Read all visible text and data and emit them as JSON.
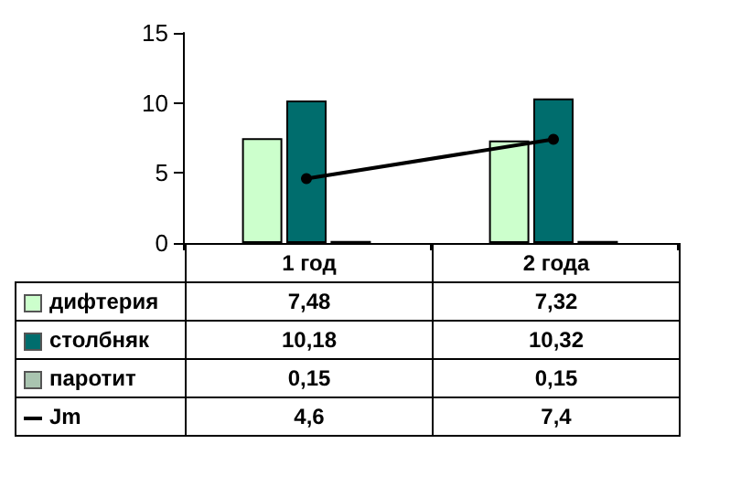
{
  "chart_data": {
    "type": "bar",
    "categories": [
      "1 год",
      "2 года"
    ],
    "series": [
      {
        "name": "дифтерия",
        "color": "#ccffcc",
        "values": [
          7.48,
          7.32
        ],
        "value_labels": [
          "7,48",
          "7,32"
        ]
      },
      {
        "name": "столбняк",
        "color": "#006d6d",
        "values": [
          10.18,
          10.32
        ],
        "value_labels": [
          "10,18",
          "10,32"
        ]
      },
      {
        "name": "паротит",
        "color": "#a9c4b0",
        "values": [
          0.15,
          0.15
        ],
        "value_labels": [
          "0,15",
          "0,15"
        ]
      },
      {
        "name": "Jm",
        "type": "line",
        "color": "#000000",
        "values": [
          4.6,
          7.4
        ],
        "value_labels": [
          "4,6",
          "7,4"
        ],
        "marker": "circle"
      }
    ],
    "ylim": [
      0,
      15
    ],
    "yticks": [
      0,
      5,
      10,
      15
    ],
    "grid": false,
    "legend": "bottom"
  }
}
